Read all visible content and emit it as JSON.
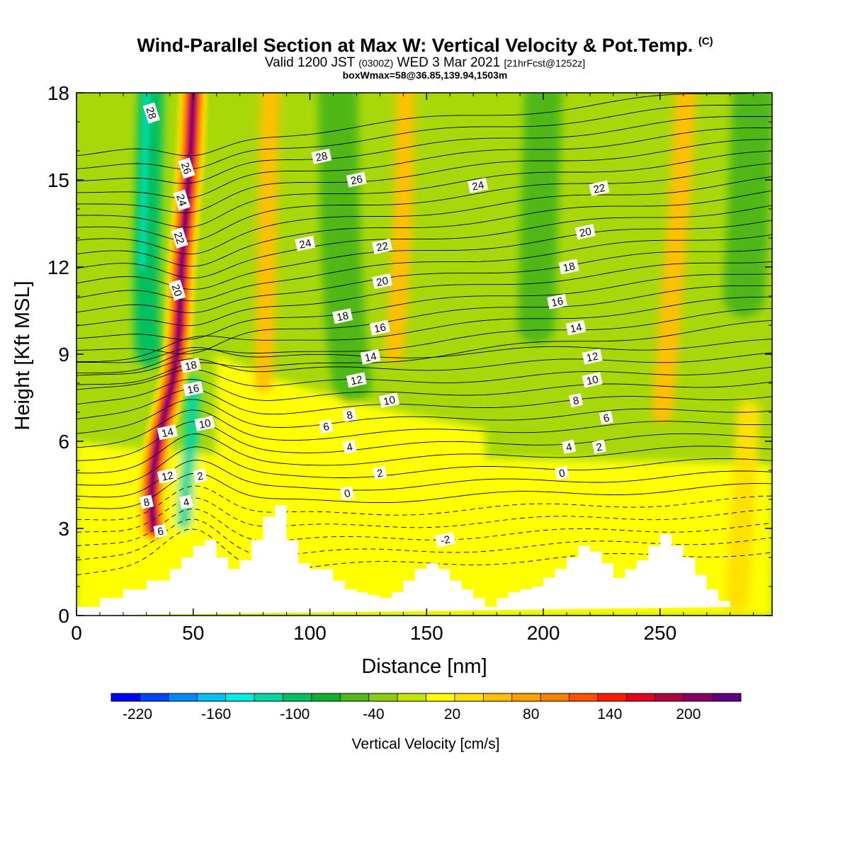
{
  "title": {
    "main": "Wind-Parallel Section at Max W: Vertical Velocity & Pot.Temp.",
    "copyright": "(C)",
    "valid_prefix": "Valid 1200 JST",
    "valid_utc": "(0300Z)",
    "valid_date": "WED 3 Mar 2021",
    "forecast": "[21hrFcst@1252z]",
    "box_info": "boxWmax=58@36.85,139.94,1503m"
  },
  "chart_data": {
    "type": "heatmap",
    "xlabel": "Distance [nm]",
    "ylabel": "Height [Kft MSL]",
    "xlim": [
      0,
      298
    ],
    "ylim": [
      0,
      18
    ],
    "x_ticks": [
      "0",
      "50",
      "100",
      "150",
      "200",
      "250"
    ],
    "y_ticks": [
      "0",
      "3",
      "6",
      "9",
      "12",
      "15",
      "18"
    ],
    "colorbar": {
      "label": "Vertical Velocity [cm/s]",
      "tick_labels": [
        "-220",
        "-160",
        "-100",
        "-40",
        "20",
        "80",
        "140",
        "200"
      ],
      "colors": [
        "#0000ff",
        "#0044ff",
        "#0088ff",
        "#00c0f0",
        "#00eee0",
        "#00d8a0",
        "#00c060",
        "#10b030",
        "#50b818",
        "#8ccc10",
        "#c4e400",
        "#ffff00",
        "#ffe000",
        "#ffc000",
        "#ffa000",
        "#ff8000",
        "#ff5000",
        "#ff1c00",
        "#e00020",
        "#b00040",
        "#880060",
        "#600080"
      ]
    },
    "updraft_axes": [
      {
        "name": "u1",
        "value": 200,
        "points": [
          [
            50,
            18
          ],
          [
            49,
            16
          ],
          [
            47,
            14
          ],
          [
            45,
            12
          ],
          [
            44,
            10
          ],
          [
            43,
            9
          ],
          [
            41,
            8
          ],
          [
            38,
            7
          ],
          [
            35,
            6
          ],
          [
            33,
            5
          ],
          [
            32,
            4
          ],
          [
            33,
            3
          ]
        ]
      }
    ],
    "updraft_bands": [
      {
        "value": 50,
        "points": [
          [
            83,
            18
          ],
          [
            82,
            14
          ],
          [
            81,
            10
          ],
          [
            80,
            8
          ]
        ],
        "width_nm": 8
      },
      {
        "value": 50,
        "points": [
          [
            141,
            18
          ],
          [
            140,
            14
          ],
          [
            138,
            11
          ],
          [
            136,
            9
          ]
        ],
        "width_nm": 8
      },
      {
        "value": 50,
        "points": [
          [
            261,
            18
          ],
          [
            259,
            15
          ],
          [
            256,
            12
          ],
          [
            253,
            9
          ],
          [
            251,
            7
          ]
        ],
        "width_nm": 9
      },
      {
        "value": 30,
        "points": [
          [
            288,
            7
          ],
          [
            285,
            3
          ],
          [
            283,
            0.5
          ]
        ],
        "width_nm": 10
      }
    ],
    "downdraft_bands": [
      {
        "value": -95,
        "points": [
          [
            32,
            18
          ],
          [
            31,
            15
          ],
          [
            30,
            12
          ],
          [
            30,
            10
          ],
          [
            31,
            9
          ]
        ],
        "width_nm": 11
      },
      {
        "value": -110,
        "points": [
          [
            50,
            8
          ],
          [
            49,
            6
          ],
          [
            47,
            4.5
          ],
          [
            46,
            3.2
          ]
        ],
        "width_nm": 6
      },
      {
        "value": -50,
        "points": [
          [
            112,
            18
          ],
          [
            113,
            13
          ],
          [
            115,
            10
          ],
          [
            118,
            8
          ]
        ],
        "width_nm": 17
      },
      {
        "value": -50,
        "points": [
          [
            200,
            18
          ],
          [
            198,
            13
          ],
          [
            197,
            10
          ]
        ],
        "width_nm": 16
      },
      {
        "value": -50,
        "points": [
          [
            290,
            18
          ],
          [
            288,
            14
          ],
          [
            286,
            11
          ]
        ],
        "width_nm": 18
      }
    ],
    "terrain": {
      "x": [
        0,
        10,
        10,
        20,
        20,
        30,
        30,
        40,
        40,
        45,
        45,
        50,
        50,
        55,
        55,
        60,
        60,
        65,
        65,
        70,
        70,
        75,
        75,
        80,
        80,
        85,
        85,
        90,
        90,
        95,
        95,
        100,
        100,
        110,
        110,
        115,
        115,
        120,
        120,
        125,
        125,
        130,
        130,
        135,
        135,
        140,
        140,
        145,
        145,
        150,
        150,
        155,
        155,
        160,
        160,
        165,
        165,
        170,
        170,
        175,
        175,
        180,
        180,
        185,
        185,
        190,
        190,
        195,
        195,
        200,
        200,
        205,
        205,
        210,
        210,
        215,
        215,
        220,
        220,
        225,
        225,
        230,
        230,
        235,
        235,
        240,
        240,
        245,
        245,
        250,
        250,
        255,
        255,
        260,
        260,
        265,
        265,
        270,
        270,
        275,
        275,
        280,
        280,
        285,
        285,
        298
      ],
      "y": [
        0.3,
        0.3,
        0.6,
        0.6,
        0.9,
        0.9,
        1.2,
        1.2,
        1.6,
        1.6,
        2.0,
        2.0,
        2.4,
        2.4,
        2.6,
        2.6,
        2.0,
        2.0,
        1.6,
        1.6,
        1.9,
        1.9,
        2.6,
        2.6,
        3.4,
        3.4,
        3.8,
        3.8,
        2.6,
        2.6,
        1.8,
        1.8,
        1.6,
        1.6,
        1.2,
        1.2,
        0.9,
        0.9,
        0.8,
        0.8,
        0.7,
        0.7,
        0.6,
        0.6,
        0.8,
        0.8,
        1.2,
        1.2,
        1.6,
        1.6,
        1.8,
        1.8,
        1.6,
        1.6,
        1.2,
        1.2,
        0.9,
        0.9,
        0.6,
        0.6,
        0.3,
        0.3,
        0.6,
        0.6,
        0.8,
        0.8,
        0.9,
        0.9,
        1.0,
        1.0,
        1.3,
        1.3,
        1.6,
        1.6,
        2.0,
        2.0,
        2.4,
        2.4,
        2.2,
        2.2,
        1.8,
        1.8,
        1.3,
        1.3,
        1.6,
        1.6,
        1.9,
        1.9,
        2.4,
        2.4,
        2.8,
        2.8,
        2.4,
        2.4,
        2.0,
        2.0,
        1.4,
        1.4,
        0.9,
        0.9,
        0.5,
        0.5,
        0.3,
        0.3
      ]
    },
    "pot_temp_labels": [
      {
        "text": "28",
        "x": 32,
        "y": 17.3
      },
      {
        "text": "26",
        "x": 47,
        "y": 15.4
      },
      {
        "text": "24",
        "x": 45,
        "y": 14.3
      },
      {
        "text": "22",
        "x": 44,
        "y": 13.0
      },
      {
        "text": "20",
        "x": 43,
        "y": 11.2
      },
      {
        "text": "18",
        "x": 49,
        "y": 8.6
      },
      {
        "text": "16",
        "x": 50,
        "y": 7.8
      },
      {
        "text": "14",
        "x": 39,
        "y": 6.3
      },
      {
        "text": "12",
        "x": 39,
        "y": 4.8
      },
      {
        "text": "10",
        "x": 55,
        "y": 6.6
      },
      {
        "text": "8",
        "x": 30,
        "y": 3.9
      },
      {
        "text": "6",
        "x": 36,
        "y": 2.9
      },
      {
        "text": "4",
        "x": 47,
        "y": 3.9
      },
      {
        "text": "2",
        "x": 53,
        "y": 4.8
      },
      {
        "text": "28",
        "x": 105,
        "y": 15.8
      },
      {
        "text": "26",
        "x": 120,
        "y": 15.0
      },
      {
        "text": "24",
        "x": 98,
        "y": 12.8
      },
      {
        "text": "22",
        "x": 131,
        "y": 12.7
      },
      {
        "text": "20",
        "x": 131,
        "y": 11.5
      },
      {
        "text": "18",
        "x": 114,
        "y": 10.3
      },
      {
        "text": "16",
        "x": 130,
        "y": 9.9
      },
      {
        "text": "14",
        "x": 126,
        "y": 8.9
      },
      {
        "text": "12",
        "x": 120,
        "y": 8.1
      },
      {
        "text": "10",
        "x": 134,
        "y": 7.4
      },
      {
        "text": "8",
        "x": 117,
        "y": 6.9
      },
      {
        "text": "6",
        "x": 107,
        "y": 6.5
      },
      {
        "text": "4",
        "x": 117,
        "y": 5.8
      },
      {
        "text": "2",
        "x": 130,
        "y": 4.9
      },
      {
        "text": "0",
        "x": 116,
        "y": 4.2
      },
      {
        "text": "-2",
        "x": 158,
        "y": 2.6
      },
      {
        "text": "24",
        "x": 172,
        "y": 14.8
      },
      {
        "text": "22",
        "x": 224,
        "y": 14.7
      },
      {
        "text": "20",
        "x": 218,
        "y": 13.2
      },
      {
        "text": "18",
        "x": 211,
        "y": 12.0
      },
      {
        "text": "16",
        "x": 206,
        "y": 10.8
      },
      {
        "text": "14",
        "x": 214,
        "y": 9.9
      },
      {
        "text": "12",
        "x": 221,
        "y": 8.9
      },
      {
        "text": "10",
        "x": 221,
        "y": 8.1
      },
      {
        "text": "8",
        "x": 214,
        "y": 7.4
      },
      {
        "text": "6",
        "x": 227,
        "y": 6.8
      },
      {
        "text": "4",
        "x": 211,
        "y": 5.8
      },
      {
        "text": "2",
        "x": 224,
        "y": 5.8
      },
      {
        "text": "0",
        "x": 208,
        "y": 4.9
      }
    ],
    "pot_temp_contours": {
      "count": 36,
      "spacing_kft": 0.45,
      "base_kft": 1.4,
      "compression_x_nm": 50,
      "dashed_below_kft": 2.2
    }
  }
}
